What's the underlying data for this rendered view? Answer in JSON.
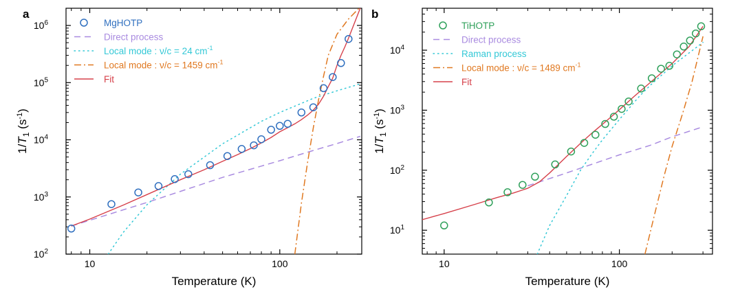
{
  "chart_data": [
    {
      "panel_label": "a",
      "type": "scatter",
      "xlabel": "Temperature (K)",
      "ylabel_main": "1/T",
      "ylabel_sub": "1",
      "ylabel_unit_pre": " (s",
      "ylabel_unit_sup": "-1",
      "ylabel_unit_post": ")",
      "x_scale": "log",
      "y_scale": "log",
      "xlim": [
        7.5,
        270
      ],
      "ylim": [
        100,
        2000000
      ],
      "x_ticks": [
        {
          "v": 10,
          "label": "10"
        },
        {
          "v": 100,
          "label": "100"
        }
      ],
      "y_ticks": [
        {
          "v": 100,
          "base": "10",
          "exp": "2"
        },
        {
          "v": 1000,
          "base": "10",
          "exp": "3"
        },
        {
          "v": 10000,
          "base": "10",
          "exp": "4"
        },
        {
          "v": 100000,
          "base": "10",
          "exp": "5"
        },
        {
          "v": 1000000,
          "base": "10",
          "exp": "6"
        }
      ],
      "colors": {
        "points": "#2f6fbf",
        "direct": "#a98be0",
        "local1": "#33c8d6",
        "local2": "#e07820",
        "fit": "#d6404a"
      },
      "legend": [
        {
          "key": "points",
          "label": "MgHOTP"
        },
        {
          "key": "direct",
          "label": "Direct process"
        },
        {
          "key": "local1",
          "label": "Local mode : ν/c = 24 cm",
          "sup": "-1"
        },
        {
          "key": "local2",
          "label": "Local mode : ν/c = 1459 cm",
          "sup": "-1"
        },
        {
          "key": "fit",
          "label": "Fit"
        }
      ],
      "points": [
        [
          8,
          280
        ],
        [
          13,
          750
        ],
        [
          18,
          1200
        ],
        [
          23,
          1550
        ],
        [
          28,
          2050
        ],
        [
          33,
          2500
        ],
        [
          43,
          3600
        ],
        [
          53,
          5200
        ],
        [
          63,
          6900
        ],
        [
          73,
          8000
        ],
        [
          80,
          10200
        ],
        [
          90,
          15000
        ],
        [
          100,
          17500
        ],
        [
          110,
          19000
        ],
        [
          130,
          30000
        ],
        [
          150,
          37000
        ],
        [
          170,
          80000
        ],
        [
          190,
          125000
        ],
        [
          210,
          220000
        ],
        [
          230,
          580000
        ]
      ],
      "series": [
        {
          "name": "Direct process",
          "key": "direct",
          "x": [
            8,
            20,
            50,
            100,
            150,
            200,
            265
          ],
          "y": [
            310,
            800,
            2200,
            4300,
            6500,
            8600,
            11500
          ]
        },
        {
          "name": "Local mode : ν/c = 24 cm-1",
          "key": "local1",
          "x": [
            12.5,
            15,
            20,
            30,
            50,
            80,
            100,
            150,
            200,
            265
          ],
          "y": [
            100,
            240,
            730,
            2500,
            8500,
            21000,
            30000,
            53000,
            72000,
            95000
          ]
        },
        {
          "name": "Local mode : ν/c = 1459 cm-1",
          "key": "local2",
          "x": [
            120,
            130,
            140,
            150,
            160,
            170,
            180,
            200,
            230,
            265
          ],
          "y": [
            100,
            780,
            4000,
            16000,
            50000,
            130000,
            300000,
            700000,
            1300000,
            2100000
          ]
        },
        {
          "name": "Fit",
          "key": "fit",
          "x": [
            8,
            10,
            15,
            20,
            30,
            40,
            50,
            60,
            70,
            80,
            90,
            100,
            110,
            120,
            130,
            140,
            150,
            160,
            170,
            180,
            190,
            200,
            210,
            220,
            230,
            265
          ],
          "y": [
            310,
            410,
            720,
            1100,
            2000,
            3000,
            4200,
            5500,
            7000,
            8800,
            11000,
            13800,
            16300,
            19000,
            22500,
            27000,
            33000,
            42000,
            58000,
            85000,
            120000,
            200000,
            300000,
            420000,
            600000,
            2000000
          ]
        }
      ]
    },
    {
      "panel_label": "b",
      "type": "scatter",
      "xlabel": "Temperature (K)",
      "ylabel_main": "1/T",
      "ylabel_sub": "1",
      "ylabel_unit_pre": " (s",
      "ylabel_unit_sup": "-1",
      "ylabel_unit_post": ")",
      "x_scale": "log",
      "y_scale": "log",
      "xlim": [
        7.5,
        340
      ],
      "ylim": [
        4,
        50000
      ],
      "x_ticks": [
        {
          "v": 10,
          "label": "10"
        },
        {
          "v": 100,
          "label": "100"
        }
      ],
      "y_ticks": [
        {
          "v": 10,
          "base": "10",
          "exp": "1"
        },
        {
          "v": 100,
          "base": "10",
          "exp": "2"
        },
        {
          "v": 1000,
          "base": "10",
          "exp": "3"
        },
        {
          "v": 10000,
          "base": "10",
          "exp": "4"
        }
      ],
      "colors": {
        "points": "#2fa05a",
        "direct": "#a98be0",
        "local1": "#33c8d6",
        "local2": "#e07820",
        "fit": "#d6404a"
      },
      "legend": [
        {
          "key": "points",
          "label": "TiHOTP"
        },
        {
          "key": "direct",
          "label": "Direct process"
        },
        {
          "key": "local1",
          "label": "Raman process"
        },
        {
          "key": "local2",
          "label": "Local mode : ν/c = 1489 cm",
          "sup": "-1"
        },
        {
          "key": "fit",
          "label": "Fit"
        }
      ],
      "points": [
        [
          10,
          12
        ],
        [
          18,
          29
        ],
        [
          23,
          43
        ],
        [
          28,
          57
        ],
        [
          33,
          78
        ],
        [
          43,
          125
        ],
        [
          53,
          205
        ],
        [
          63,
          285
        ],
        [
          73,
          390
        ],
        [
          83,
          590
        ],
        [
          93,
          780
        ],
        [
          103,
          1050
        ],
        [
          113,
          1400
        ],
        [
          133,
          2300
        ],
        [
          153,
          3400
        ],
        [
          173,
          4900
        ],
        [
          193,
          5500
        ],
        [
          213,
          8500
        ],
        [
          233,
          11500
        ],
        [
          253,
          14500
        ],
        [
          273,
          19000
        ],
        [
          293,
          25000
        ]
      ],
      "series": [
        {
          "name": "Direct process",
          "key": "direct",
          "x": [
            30,
            50,
            100,
            150,
            200,
            300
          ],
          "y": [
            55,
            90,
            180,
            260,
            360,
            530
          ]
        },
        {
          "name": "Raman process",
          "key": "local1",
          "x": [
            34,
            40,
            50,
            60,
            70,
            80,
            100,
            130,
            150,
            200,
            300
          ],
          "y": [
            4,
            12,
            38,
            100,
            190,
            320,
            700,
            1700,
            2600,
            5500,
            13500
          ]
        },
        {
          "name": "Local mode : ν/c = 1489 cm-1",
          "key": "local2",
          "x": [
            140,
            160,
            180,
            200,
            230,
            260,
            300
          ],
          "y": [
            4,
            20,
            80,
            250,
            900,
            3000,
            17000
          ]
        },
        {
          "name": "Fit",
          "key": "fit",
          "x": [
            7.5,
            10,
            15,
            20,
            25,
            30,
            35,
            40,
            50,
            60,
            70,
            80,
            90,
            100,
            120,
            150,
            200,
            250,
            300
          ],
          "y": [
            15,
            19,
            27,
            35,
            42,
            50,
            64,
            90,
            170,
            280,
            420,
            580,
            780,
            1020,
            1650,
            2900,
            6000,
            11500,
            25000
          ]
        }
      ]
    }
  ]
}
